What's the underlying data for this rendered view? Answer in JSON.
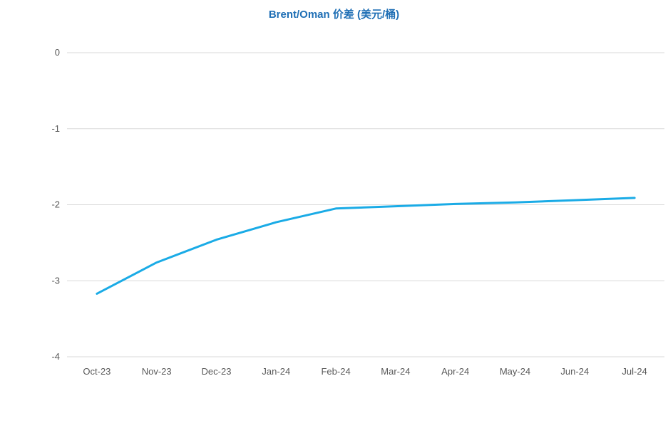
{
  "chart_data": {
    "type": "line",
    "title": "Brent/Oman 价差 (美元/桶)",
    "xlabel": "",
    "ylabel": "",
    "categories": [
      "Oct-23",
      "Nov-23",
      "Dec-23",
      "Jan-24",
      "Feb-24",
      "Mar-24",
      "Apr-24",
      "May-24",
      "Jun-24",
      "Jul-24"
    ],
    "series": [
      {
        "values": [
          -3.17,
          -2.76,
          -2.46,
          -2.23,
          -2.05,
          -2.02,
          -1.99,
          -1.97,
          -1.94,
          -1.91
        ],
        "color": "#1aabe6"
      }
    ],
    "ylim": [
      -4,
      0
    ],
    "yticks": [
      0,
      -1,
      -2,
      -3,
      -4
    ],
    "grid": true,
    "legend": "none"
  }
}
